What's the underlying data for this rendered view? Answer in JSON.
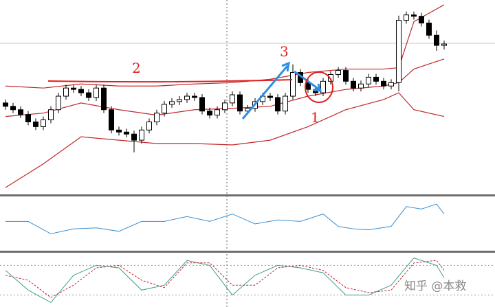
{
  "chart_data": [
    {
      "type": "candlestick",
      "up_color": "#ffffff",
      "down_color": "#000000",
      "band_color": "#c0282b",
      "ylim": [
        0,
        283
      ],
      "open": [
        133,
        128,
        123,
        116,
        105,
        98,
        108,
        123,
        143,
        155,
        153,
        148,
        141,
        155,
        123,
        93,
        90,
        87,
        78,
        93,
        105,
        118,
        131,
        135,
        138,
        143,
        141,
        121,
        115,
        123,
        133,
        145,
        121,
        125,
        135,
        143,
        141,
        121,
        143,
        178,
        163,
        153,
        148,
        165,
        175,
        181,
        165,
        155,
        161,
        171,
        165,
        158,
        163,
        255,
        263,
        261,
        251,
        233,
        218
      ],
      "high": [
        138,
        133,
        128,
        121,
        110,
        113,
        128,
        148,
        160,
        160,
        158,
        153,
        160,
        160,
        128,
        98,
        95,
        92,
        98,
        110,
        123,
        136,
        140,
        143,
        148,
        148,
        146,
        126,
        128,
        138,
        150,
        150,
        130,
        140,
        148,
        148,
        146,
        148,
        190,
        183,
        168,
        158,
        170,
        180,
        186,
        186,
        170,
        166,
        176,
        176,
        170,
        168,
        262,
        268,
        268,
        266,
        256,
        240,
        225
      ],
      "low": [
        123,
        118,
        111,
        100,
        93,
        93,
        103,
        118,
        138,
        148,
        143,
        136,
        136,
        118,
        88,
        85,
        82,
        60,
        73,
        88,
        100,
        113,
        126,
        130,
        133,
        136,
        116,
        110,
        110,
        118,
        128,
        116,
        116,
        120,
        130,
        136,
        116,
        116,
        138,
        158,
        148,
        143,
        143,
        160,
        170,
        160,
        150,
        150,
        156,
        160,
        153,
        153,
        150,
        250,
        256,
        246,
        228,
        210,
        212
      ],
      "close": [
        128,
        123,
        116,
        105,
        98,
        108,
        123,
        143,
        155,
        153,
        148,
        141,
        155,
        123,
        93,
        90,
        87,
        78,
        93,
        105,
        118,
        131,
        135,
        138,
        143,
        141,
        121,
        115,
        123,
        133,
        145,
        121,
        125,
        135,
        143,
        141,
        121,
        143,
        178,
        163,
        153,
        148,
        165,
        175,
        181,
        165,
        155,
        161,
        171,
        165,
        158,
        163,
        255,
        263,
        261,
        251,
        233,
        218,
        220
      ],
      "bands": {
        "x": [
          0,
          5,
          10,
          15,
          20,
          25,
          30,
          35,
          40,
          45,
          50,
          52,
          54,
          58
        ],
        "series": [
          {
            "values": [
              158,
              155,
              161,
              158,
              158,
              161,
              163,
              168,
              178,
              183,
              183,
              185,
              253,
              278
            ]
          },
          {
            "values": [
              113,
              118,
              133,
              123,
              115,
              123,
              125,
              128,
              143,
              153,
              158,
              163,
              183,
              198
            ]
          },
          {
            "values": [
              8,
              43,
              83,
              78,
              73,
              73,
              71,
              78,
              98,
              123,
              138,
              148,
              123,
              113
            ]
          }
        ]
      },
      "annotations": [
        "2",
        "3",
        "1"
      ]
    },
    {
      "type": "line",
      "ylim": [
        0,
        100
      ],
      "x": [
        0,
        3,
        6,
        9,
        12,
        15,
        18,
        21,
        24,
        27,
        30,
        33,
        36,
        39,
        42,
        44,
        46,
        48,
        51,
        53,
        55,
        57,
        58
      ],
      "series": [
        {
          "color": "#3a8fd0",
          "values": [
            55,
            55,
            30,
            40,
            42,
            35,
            55,
            55,
            65,
            55,
            70,
            50,
            58,
            55,
            70,
            45,
            40,
            38,
            45,
            85,
            80,
            90,
            70
          ]
        }
      ]
    },
    {
      "type": "line",
      "ylim": [
        0,
        100
      ],
      "levels": [
        80,
        20
      ],
      "x": [
        0,
        3,
        6,
        9,
        12,
        15,
        18,
        21,
        24,
        27,
        30,
        33,
        36,
        39,
        42,
        45,
        48,
        51,
        54,
        57,
        58
      ],
      "series": [
        {
          "color": "#3aa08a",
          "values": [
            70,
            30,
            5,
            60,
            80,
            75,
            30,
            40,
            90,
            80,
            20,
            60,
            80,
            75,
            65,
            20,
            20,
            40,
            95,
            80,
            55
          ]
        },
        {
          "color": "#c0282b",
          "dash": true,
          "values": [
            60,
            50,
            15,
            40,
            75,
            80,
            50,
            35,
            85,
            85,
            40,
            40,
            75,
            80,
            70,
            35,
            25,
            30,
            85,
            90,
            70
          ]
        }
      ]
    }
  ],
  "watermark": "知乎 @本救"
}
